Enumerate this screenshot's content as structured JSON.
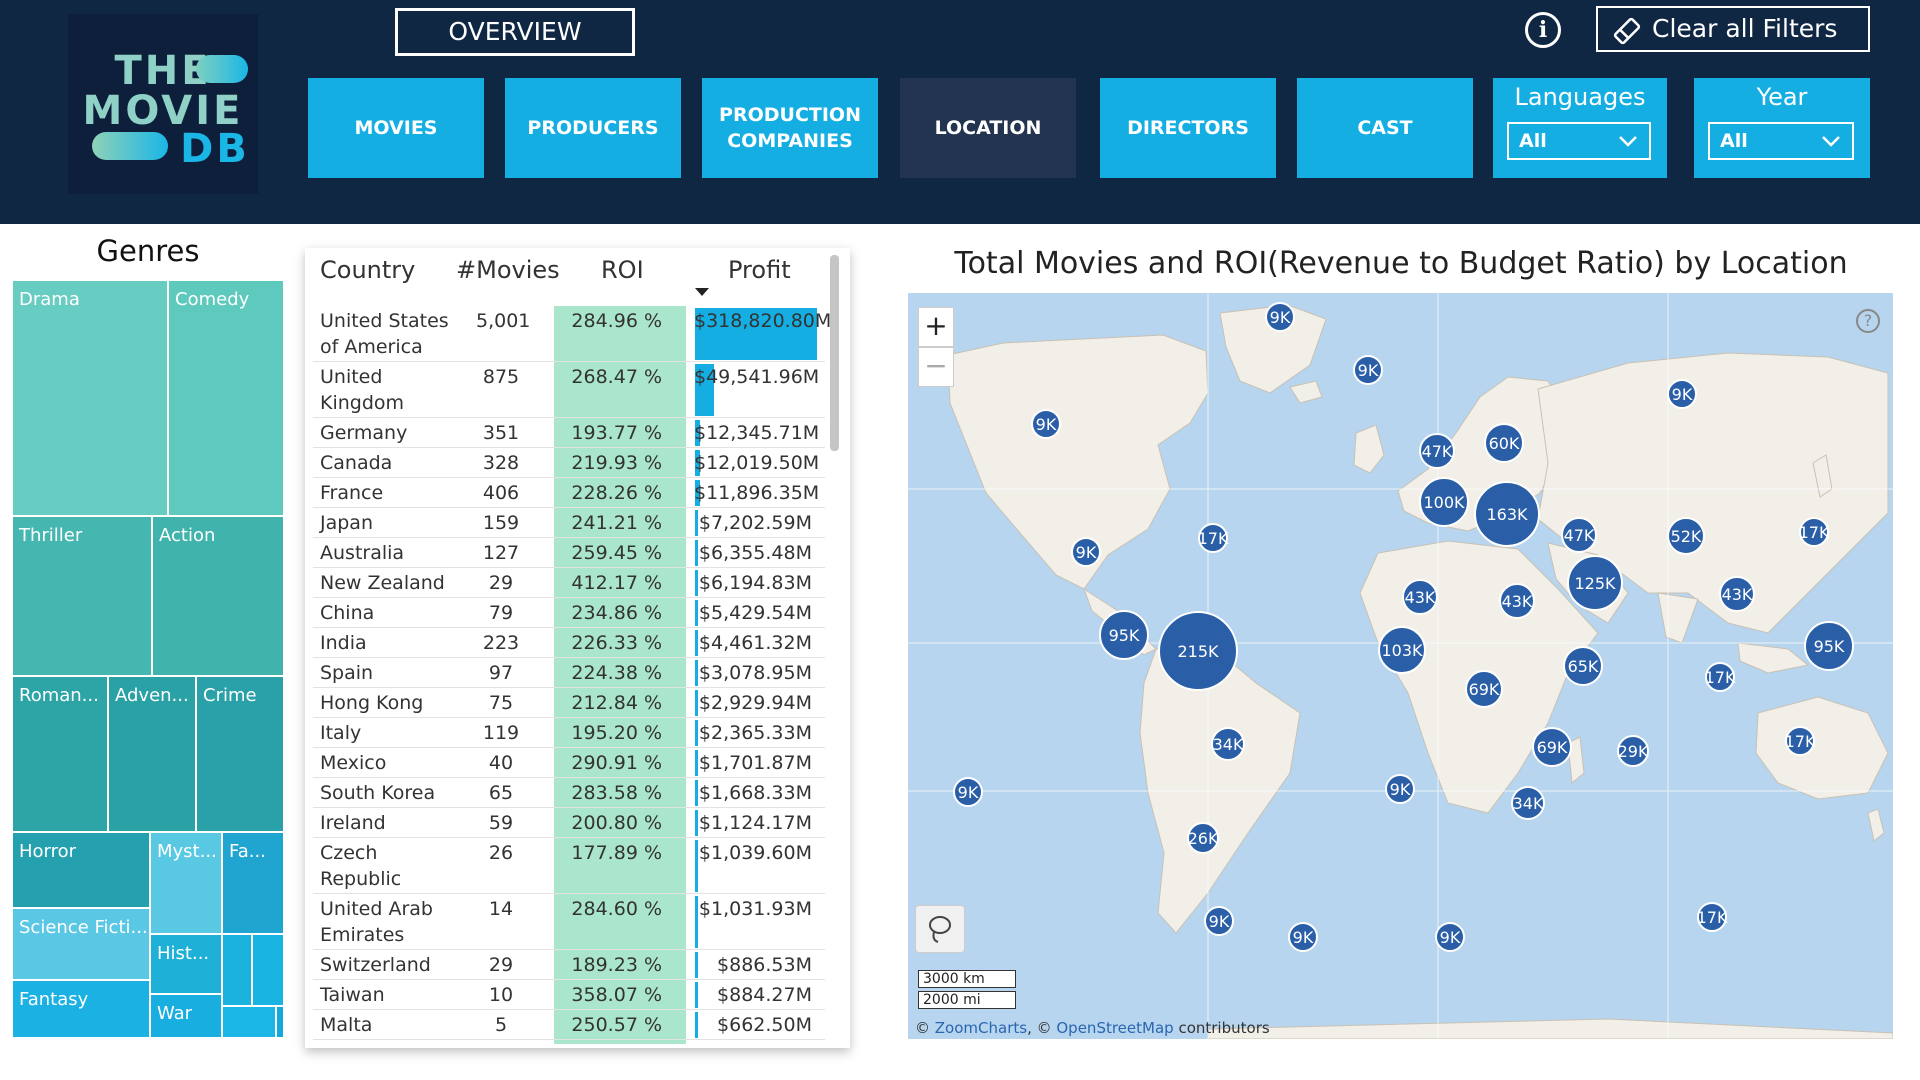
{
  "logo": {
    "line1": "THE",
    "line2": "MOVIE",
    "line3": "DB"
  },
  "header": {
    "overview_label": "OVERVIEW",
    "clear_filters_label": "Clear all Filters",
    "nav": [
      "MOVIES",
      "PRODUCERS",
      "PRODUCTION COMPANIES",
      "LOCATION",
      "DIRECTORS",
      "CAST"
    ],
    "active_nav": "LOCATION",
    "slicers": [
      {
        "title": "Languages",
        "value": "All"
      },
      {
        "title": "Year",
        "value": "All"
      }
    ]
  },
  "genres": {
    "title": "Genres",
    "labels": [
      "Drama",
      "Comedy",
      "Thriller",
      "Action",
      "Roman...",
      "Adven...",
      "Crime",
      "Horror",
      "Myst...",
      "Fa...",
      "Science Ficti...",
      "Hist...",
      "Fantasy",
      "War"
    ]
  },
  "table": {
    "headers": {
      "country": "Country",
      "movies": "#Movies",
      "roi": "ROI",
      "profit": "Profit"
    },
    "rows": [
      {
        "country": "United States of America",
        "movies": "5,001",
        "roi": "284.96 %",
        "profit": "$318,820.80M",
        "profit_share": 1.0
      },
      {
        "country": "United Kingdom",
        "movies": "875",
        "roi": "268.47 %",
        "profit": "$49,541.96M",
        "profit_share": 0.155
      },
      {
        "country": "Germany",
        "movies": "351",
        "roi": "193.77 %",
        "profit": "$12,345.71M",
        "profit_share": 0.039
      },
      {
        "country": "Canada",
        "movies": "328",
        "roi": "219.93 %",
        "profit": "$12,019.50M",
        "profit_share": 0.038
      },
      {
        "country": "France",
        "movies": "406",
        "roi": "228.26 %",
        "profit": "$11,896.35M",
        "profit_share": 0.037
      },
      {
        "country": "Japan",
        "movies": "159",
        "roi": "241.21 %",
        "profit": "$7,202.59M",
        "profit_share": 0.023
      },
      {
        "country": "Australia",
        "movies": "127",
        "roi": "259.45 %",
        "profit": "$6,355.48M",
        "profit_share": 0.02
      },
      {
        "country": "New Zealand",
        "movies": "29",
        "roi": "412.17 %",
        "profit": "$6,194.83M",
        "profit_share": 0.019
      },
      {
        "country": "China",
        "movies": "79",
        "roi": "234.86 %",
        "profit": "$5,429.54M",
        "profit_share": 0.017
      },
      {
        "country": "India",
        "movies": "223",
        "roi": "226.33 %",
        "profit": "$4,461.32M",
        "profit_share": 0.014
      },
      {
        "country": "Spain",
        "movies": "97",
        "roi": "224.38 %",
        "profit": "$3,078.95M",
        "profit_share": 0.01
      },
      {
        "country": "Hong Kong",
        "movies": "75",
        "roi": "212.84 %",
        "profit": "$2,929.94M",
        "profit_share": 0.009
      },
      {
        "country": "Italy",
        "movies": "119",
        "roi": "195.20 %",
        "profit": "$2,365.33M",
        "profit_share": 0.007
      },
      {
        "country": "Mexico",
        "movies": "40",
        "roi": "290.91 %",
        "profit": "$1,701.87M",
        "profit_share": 0.005
      },
      {
        "country": "South Korea",
        "movies": "65",
        "roi": "283.58 %",
        "profit": "$1,668.33M",
        "profit_share": 0.005
      },
      {
        "country": "Ireland",
        "movies": "59",
        "roi": "200.80 %",
        "profit": "$1,124.17M",
        "profit_share": 0.004
      },
      {
        "country": "Czech Republic",
        "movies": "26",
        "roi": "177.89 %",
        "profit": "$1,039.60M",
        "profit_share": 0.003
      },
      {
        "country": "United Arab Emirates",
        "movies": "14",
        "roi": "284.60 %",
        "profit": "$1,031.93M",
        "profit_share": 0.003
      },
      {
        "country": "Switzerland",
        "movies": "29",
        "roi": "189.23 %",
        "profit": "$886.53M",
        "profit_share": 0.003
      },
      {
        "country": "Taiwan",
        "movies": "10",
        "roi": "358.07 %",
        "profit": "$884.27M",
        "profit_share": 0.003
      },
      {
        "country": "Malta",
        "movies": "5",
        "roi": "250.57 %",
        "profit": "$662.50M",
        "profit_share": 0.002
      }
    ]
  },
  "map": {
    "title": "Total Movies and ROI(Revenue to Budget Ratio) by Location",
    "zoom_in": "+",
    "zoom_out": "−",
    "help": "?",
    "scale_km": "3000 km",
    "scale_mi": "2000 mi",
    "attribution_prefix": "© ",
    "attribution_zc": "ZoomCharts",
    "attribution_mid": ", © ",
    "attribution_osm": "OpenStreetMap",
    "attribution_suffix": " contributors",
    "bubbles": [
      "9K",
      "9K",
      "9K",
      "9K",
      "47K",
      "60K",
      "100K",
      "163K",
      "17K",
      "9K",
      "47K",
      "52K",
      "17K",
      "125K",
      "43K",
      "43K",
      "43K",
      "95K",
      "215K",
      "103K",
      "65K",
      "95K",
      "69K",
      "17K",
      "34K",
      "69K",
      "29K",
      "17K",
      "9K",
      "9K",
      "34K",
      "26K",
      "9K",
      "9K",
      "9K",
      "17K"
    ]
  },
  "colors": {
    "header_bg": "#102744",
    "nav_button": "#14aee3",
    "nav_active": "#22344f",
    "roi_highlight": "#a9e6cb",
    "profit_bar": "#14aee3",
    "map_ocean": "#b7d5ef",
    "map_land": "#f2efe9",
    "bubble": "#2a5fa8"
  }
}
